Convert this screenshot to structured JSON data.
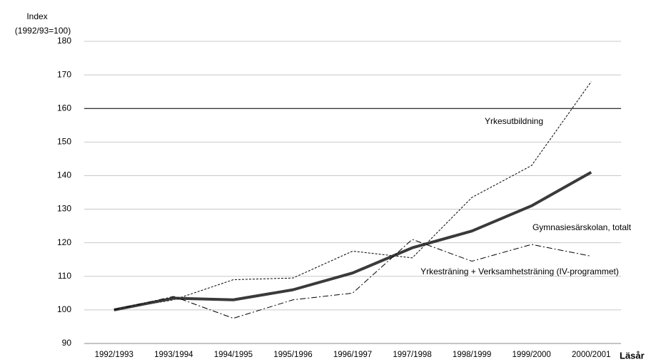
{
  "chart_data": {
    "type": "line",
    "y_label_lines": [
      "Index",
      "(1992/93=100)"
    ],
    "x_label": "Läsår",
    "categories": [
      "1992/1993",
      "1993/1994",
      "1994/1995",
      "1995/1996",
      "1996/1997",
      "1997/1998",
      "1998/1999",
      "1999/2000",
      "2000/2001"
    ],
    "series": [
      {
        "name": "Yrkesutbildning",
        "color": "#000000",
        "style": "dotted",
        "values": [
          100,
          103,
          109,
          109.5,
          117.5,
          115.5,
          133.5,
          143,
          168
        ]
      },
      {
        "name": "Gymnasiesärskolan, totalt",
        "color": "#3a3a3a",
        "style": "thick",
        "values": [
          100,
          103.5,
          103,
          106,
          111,
          118.5,
          123.5,
          131,
          141
        ]
      },
      {
        "name": "Yrkesträning + Verksamhetsträning (IV-programmet)",
        "color": "#000000",
        "style": "dashdot",
        "values": [
          100,
          104,
          97.5,
          103,
          105,
          121,
          114.5,
          119.5,
          116
        ]
      }
    ],
    "ylim": [
      90,
      180
    ],
    "yticks": [
      90,
      100,
      110,
      120,
      130,
      140,
      150,
      160,
      170,
      180
    ],
    "reference_line": 160,
    "grid": true
  }
}
